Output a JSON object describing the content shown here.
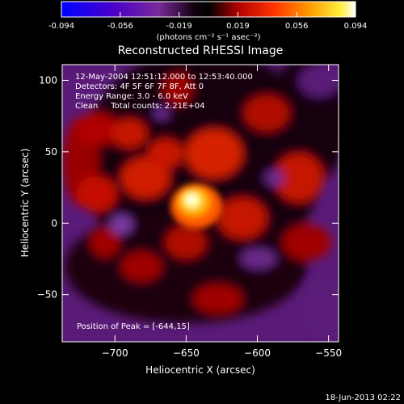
{
  "colorbar": {
    "tick_labels": [
      "-0.094",
      "-0.056",
      "-0.019",
      "0.019",
      "0.056",
      "0.094"
    ],
    "min": -0.094,
    "max": 0.094,
    "unit_label": "(photons cm⁻² s⁻¹ asec⁻²)"
  },
  "chart_data": {
    "type": "heatmap",
    "title": "Reconstructed RHESSI Image",
    "xlabel": "Heliocentric X (arcsec)",
    "ylabel": "Heliocentric Y (arcsec)",
    "xlim": [
      -737,
      -543
    ],
    "ylim": [
      -83,
      111
    ],
    "x_ticks": [
      -700,
      -650,
      -600,
      -550
    ],
    "y_ticks": [
      -50,
      0,
      50,
      100
    ],
    "x_tick_labels": [
      "−700",
      "−650",
      "−600",
      "−550"
    ],
    "y_tick_labels": [
      "−50",
      "0",
      "50",
      "100"
    ],
    "peak": [
      -644,
      15
    ],
    "annotations": [
      "12-May-2004 12:51:12.000 to 12:53:40.000",
      "Detectors: 4F 5F 6F 7F 8F, Att 0",
      "Energy Range: 3.0 - 6.0 keV",
      "Clean     Total counts: 2.21E+04"
    ],
    "peak_label": "Position of Peak = [-644,15]",
    "colormap": "red-temperature (dark blue → purple → black → red → orange → yellow → white)"
  },
  "footer": {
    "date": "18-Jun-2013 02:22"
  }
}
